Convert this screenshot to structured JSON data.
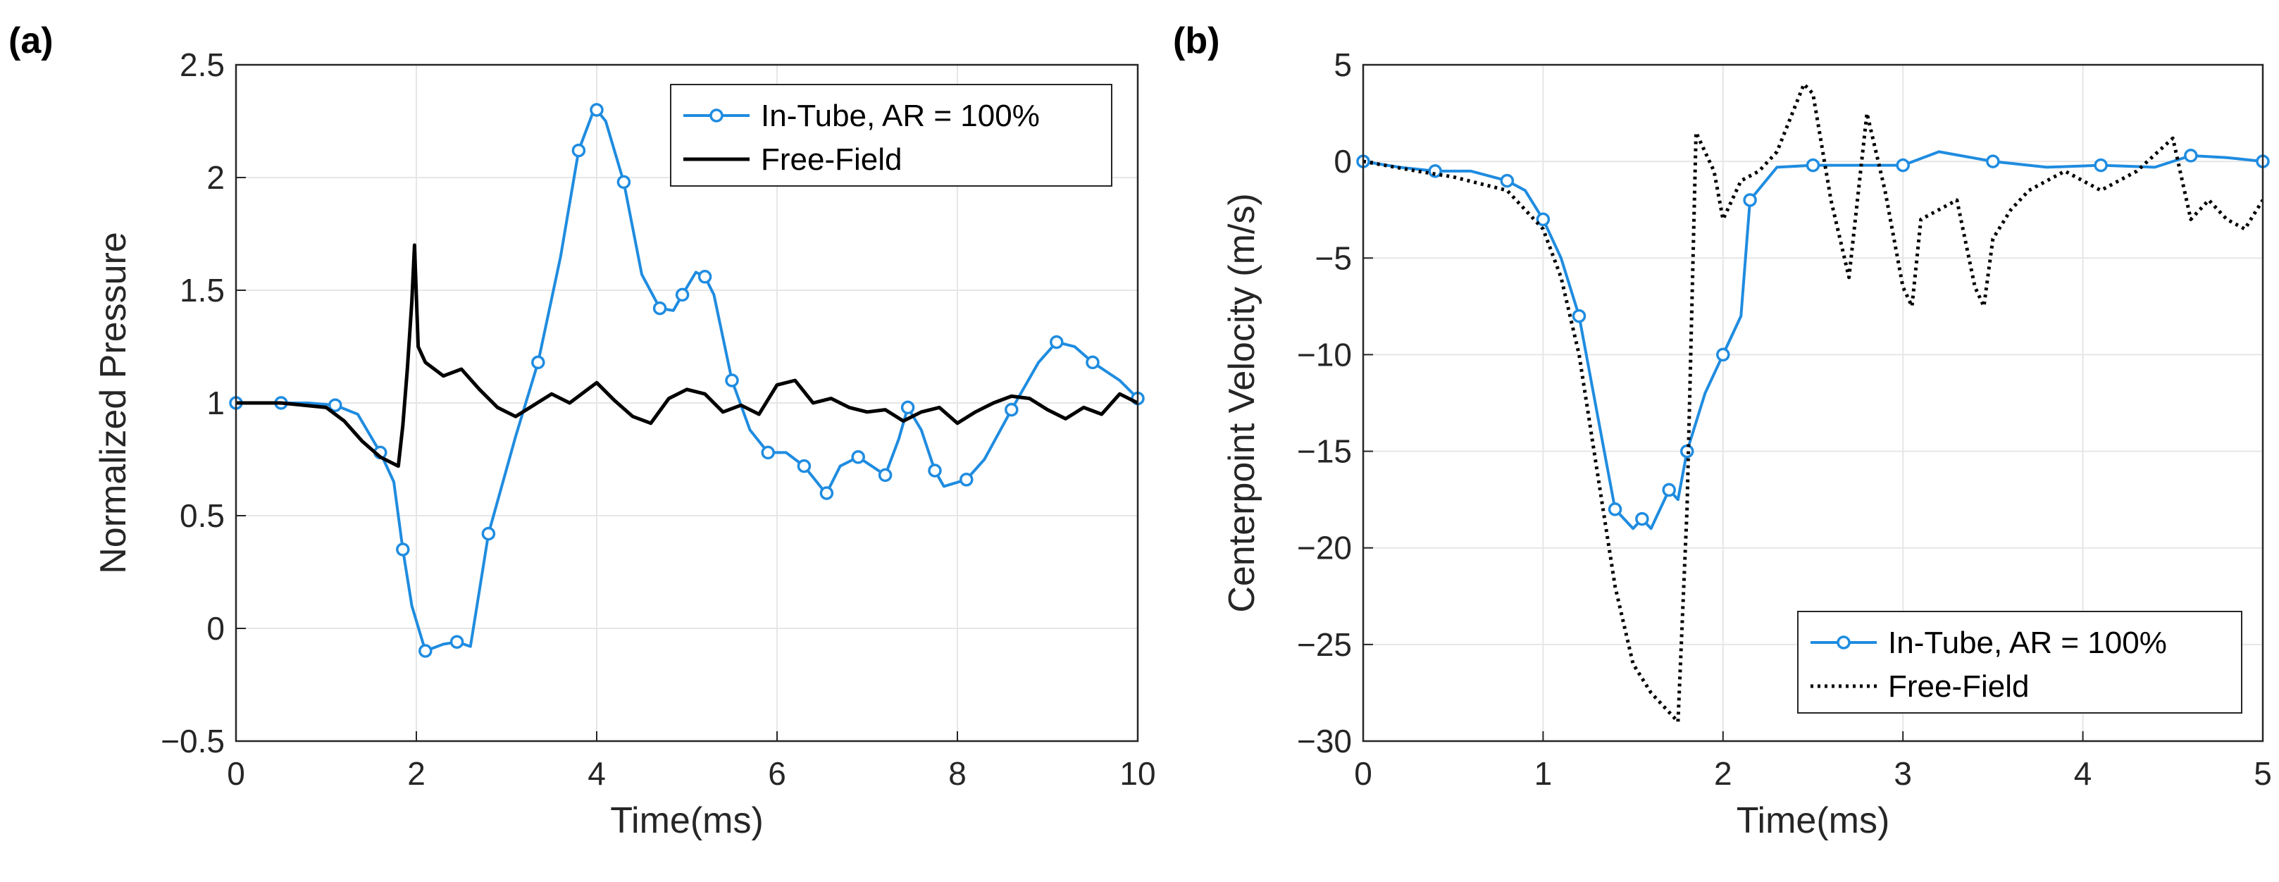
{
  "chart_data": [
    {
      "panel_label": "(a)",
      "type": "line",
      "xlabel": "Time(ms)",
      "ylabel": "Normalized Pressure",
      "xlim": [
        0,
        10
      ],
      "ylim": [
        -0.5,
        2.5
      ],
      "xticks": [
        "0",
        "2",
        "4",
        "6",
        "8",
        "10"
      ],
      "yticks": [
        "−0.5",
        "0",
        "0.5",
        "1",
        "1.5",
        "2",
        "2.5"
      ],
      "grid": true,
      "legend_position": "top-right",
      "series": [
        {
          "name": "In-Tube, AR = 100%",
          "color": "#1f8ce0",
          "style": "solid-circle-markers",
          "x": [
            0,
            0.2,
            0.5,
            0.8,
            1.1,
            1.35,
            1.6,
            1.75,
            1.85,
            1.95,
            2.1,
            2.3,
            2.45,
            2.6,
            2.8,
            3.1,
            3.35,
            3.6,
            3.8,
            3.95,
            4.0,
            4.1,
            4.3,
            4.5,
            4.7,
            4.85,
            4.95,
            5.1,
            5.2,
            5.3,
            5.5,
            5.7,
            5.9,
            6.1,
            6.3,
            6.5,
            6.55,
            6.7,
            6.9,
            7.05,
            7.2,
            7.35,
            7.45,
            7.6,
            7.75,
            7.85,
            8.1,
            8.3,
            8.6,
            8.9,
            9.1,
            9.3,
            9.5,
            9.8,
            10.0
          ],
          "y": [
            1.0,
            1.0,
            1.0,
            1.0,
            0.99,
            0.95,
            0.78,
            0.65,
            0.35,
            0.1,
            -0.1,
            -0.07,
            -0.06,
            -0.08,
            0.42,
            0.85,
            1.18,
            1.65,
            2.12,
            2.28,
            2.3,
            2.25,
            1.98,
            1.57,
            1.42,
            1.41,
            1.48,
            1.58,
            1.56,
            1.48,
            1.1,
            0.88,
            0.78,
            0.78,
            0.72,
            0.62,
            0.6,
            0.72,
            0.76,
            0.72,
            0.68,
            0.84,
            0.98,
            0.88,
            0.7,
            0.63,
            0.66,
            0.75,
            0.97,
            1.18,
            1.27,
            1.25,
            1.18,
            1.1,
            1.02
          ]
        },
        {
          "name": "Free-Field",
          "color": "#000000",
          "style": "solid",
          "x": [
            0,
            0.5,
            1.0,
            1.2,
            1.4,
            1.6,
            1.8,
            1.85,
            1.9,
            1.95,
            1.98,
            2.02,
            2.1,
            2.3,
            2.5,
            2.7,
            2.9,
            3.1,
            3.3,
            3.5,
            3.7,
            3.9,
            4.0,
            4.2,
            4.4,
            4.6,
            4.8,
            5.0,
            5.2,
            5.4,
            5.6,
            5.8,
            6.0,
            6.2,
            6.4,
            6.6,
            6.8,
            7.0,
            7.2,
            7.4,
            7.6,
            7.8,
            8.0,
            8.2,
            8.4,
            8.6,
            8.8,
            9.0,
            9.2,
            9.4,
            9.6,
            9.8,
            10.0
          ],
          "y": [
            1.0,
            1.0,
            0.98,
            0.92,
            0.83,
            0.76,
            0.72,
            0.9,
            1.15,
            1.45,
            1.7,
            1.25,
            1.18,
            1.12,
            1.15,
            1.06,
            0.98,
            0.94,
            0.99,
            1.04,
            1.0,
            1.06,
            1.09,
            1.01,
            0.94,
            0.91,
            1.02,
            1.06,
            1.04,
            0.96,
            0.99,
            0.95,
            1.08,
            1.1,
            1.0,
            1.02,
            0.98,
            0.96,
            0.97,
            0.92,
            0.96,
            0.98,
            0.91,
            0.96,
            1.0,
            1.03,
            1.02,
            0.97,
            0.93,
            0.98,
            0.95,
            1.04,
            1.0
          ]
        }
      ]
    },
    {
      "panel_label": "(b)",
      "type": "line",
      "xlabel": "Time(ms)",
      "ylabel": "Centerpoint Velocity (m/s)",
      "xlim": [
        0,
        5
      ],
      "ylim": [
        -30,
        5
      ],
      "xticks": [
        "0",
        "1",
        "2",
        "3",
        "4",
        "5"
      ],
      "yticks": [
        "−30",
        "−25",
        "−20",
        "−15",
        "−10",
        "−5",
        "0",
        "5"
      ],
      "grid": true,
      "legend_position": "bottom-right",
      "series": [
        {
          "name": "In-Tube, AR = 100%",
          "color": "#1f8ce0",
          "style": "solid-circle-markers",
          "x": [
            0,
            0.2,
            0.4,
            0.6,
            0.8,
            0.9,
            1.0,
            1.1,
            1.2,
            1.3,
            1.4,
            1.5,
            1.55,
            1.6,
            1.7,
            1.75,
            1.8,
            1.9,
            2.0,
            2.1,
            2.15,
            2.3,
            2.5,
            2.7,
            3.0,
            3.2,
            3.5,
            3.8,
            4.1,
            4.4,
            4.6,
            4.8,
            5.0
          ],
          "y": [
            0,
            -0.3,
            -0.5,
            -0.5,
            -1.0,
            -1.5,
            -3.0,
            -5.0,
            -8.0,
            -13.0,
            -18.0,
            -19.0,
            -18.5,
            -19.0,
            -17.0,
            -17.5,
            -15.0,
            -12.0,
            -10.0,
            -8.0,
            -2.0,
            -0.3,
            -0.2,
            -0.2,
            -0.2,
            0.5,
            0.0,
            -0.3,
            -0.2,
            -0.3,
            0.3,
            0.2,
            0.0
          ]
        },
        {
          "name": "Free-Field",
          "color": "#000000",
          "style": "dotted",
          "x": [
            0,
            0.3,
            0.5,
            0.8,
            1.0,
            1.1,
            1.2,
            1.3,
            1.4,
            1.5,
            1.6,
            1.7,
            1.75,
            1.8,
            1.85,
            1.95,
            2.0,
            2.1,
            2.2,
            2.3,
            2.45,
            2.5,
            2.6,
            2.7,
            2.8,
            2.9,
            3.0,
            3.05,
            3.1,
            3.2,
            3.3,
            3.4,
            3.45,
            3.5,
            3.6,
            3.7,
            3.9,
            4.1,
            4.3,
            4.5,
            4.6,
            4.7,
            4.8,
            4.9,
            5.0
          ],
          "y": [
            0,
            -0.5,
            -0.8,
            -1.5,
            -3.5,
            -6.0,
            -10.0,
            -16.0,
            -22.0,
            -26.0,
            -27.5,
            -28.5,
            -29.0,
            -18.0,
            1.5,
            -0.5,
            -3.0,
            -1.0,
            -0.5,
            0.5,
            4.0,
            3.5,
            -2.0,
            -6.0,
            2.5,
            -1.5,
            -6.5,
            -7.5,
            -3.0,
            -2.5,
            -2.0,
            -6.5,
            -7.5,
            -4.0,
            -2.5,
            -1.5,
            -0.5,
            -1.5,
            -0.5,
            1.2,
            -3.0,
            -2.0,
            -3.0,
            -3.5,
            -2.0
          ]
        }
      ]
    }
  ]
}
